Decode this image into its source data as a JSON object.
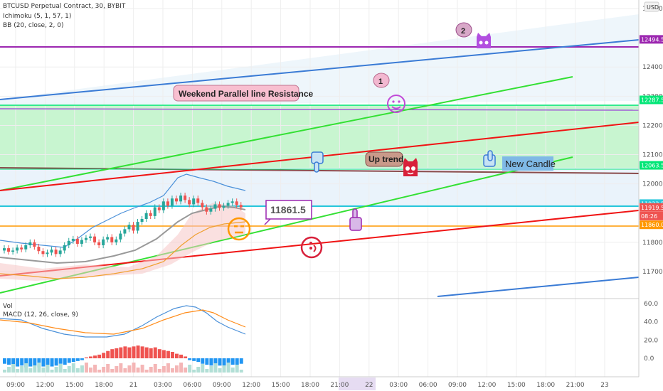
{
  "legend": {
    "title": "BTCUSD Perpetual Contract, 30, BYBIT",
    "ichimoku": "Ichimoku (5, 1, 57, 1)",
    "bb": "BB (20, close, 2, 0)",
    "vol": "Vol",
    "macd": "MACD (12, 26, close, 9)"
  },
  "currency": "USD",
  "chart_data": {
    "type": "candlestick",
    "price_axis": {
      "ticks": [
        "12600.0",
        "12400.0",
        "12300.0",
        "12200.0",
        "12100.0",
        "12000.0",
        "11800.0",
        "11700.0"
      ],
      "values": [
        12600,
        12400,
        12300,
        12200,
        12100,
        12000,
        11800,
        11700
      ]
    },
    "macd_axis": {
      "ticks": [
        "60.0",
        "40.0",
        "20.0",
        "0.0"
      ],
      "values": [
        60,
        40,
        20,
        0
      ]
    },
    "time_axis": [
      "09:00",
      "12:00",
      "15:00",
      "18:00",
      "21",
      "03:00",
      "06:00",
      "09:00",
      "12:00",
      "15:00",
      "18:00",
      "21:00",
      "22",
      "03:00",
      "06:00",
      "09:00",
      "12:00",
      "15:00",
      "18:00",
      "21:00",
      "23"
    ],
    "price_labels": [
      {
        "text": "12494.5",
        "value": 12494.5,
        "color": "#9c27b0"
      },
      {
        "text": "12287.5",
        "value": 12287.5,
        "color": "#00e676"
      },
      {
        "text": "12063.5",
        "value": 12063.5,
        "color": "#00e676"
      },
      {
        "text": "11932.5",
        "value": 11932.5,
        "color": "#26c6da"
      },
      {
        "text": "11919.5",
        "value": 11919.5,
        "color": "#ef5350"
      },
      {
        "text": "08:26",
        "value": 11890,
        "color": "#ef5350"
      },
      {
        "text": "11860.0",
        "value": 11860,
        "color": "#ff9800"
      }
    ],
    "candles": [
      11780,
      11768,
      11772,
      11782,
      11776,
      11790,
      11800,
      11785,
      11770,
      11760,
      11765,
      11775,
      11760,
      11772,
      11790,
      11805,
      11812,
      11795,
      11808,
      11815,
      11820,
      11800,
      11790,
      11810,
      11818,
      11800,
      11810,
      11830,
      11845,
      11860,
      11840,
      11870,
      11880,
      11900,
      11890,
      11920,
      11910,
      11940,
      11925,
      11950,
      11940,
      11960,
      11945,
      11930,
      11950,
      11935,
      11920,
      11905,
      11915,
      11930,
      11918,
      11925,
      11935,
      11940,
      11928,
      11919.5
    ],
    "macd_hist": [
      -6,
      -7,
      -8,
      -9,
      -8,
      -10,
      -9,
      -8,
      -10,
      -9,
      -8,
      -9,
      -8,
      -6,
      -7,
      -5,
      -4,
      -3,
      -2,
      1,
      2,
      3,
      4,
      6,
      8,
      10,
      11,
      12,
      13,
      12,
      13,
      14,
      13,
      12,
      11,
      12,
      10,
      9,
      8,
      7,
      5,
      4,
      2,
      -2,
      -3,
      -4,
      -6,
      -7,
      -8,
      -9,
      -8,
      -9,
      -8,
      -7,
      -7,
      -6
    ],
    "annotations": {
      "label_2": "2",
      "label_1": "1",
      "weekend": "Weekend Parallel line Resistance",
      "uptrend": "Up trend",
      "new_candle": "New Candle",
      "price_callout": "11861.5"
    }
  },
  "colors": {
    "up": "#26a69a",
    "down": "#ef5350",
    "purple_line": "#9c27b0",
    "green_zone": "#c8f5d0",
    "trend_red": "#f01414",
    "trend_green": "#33e033",
    "trend_blue": "#3a7bd5"
  }
}
